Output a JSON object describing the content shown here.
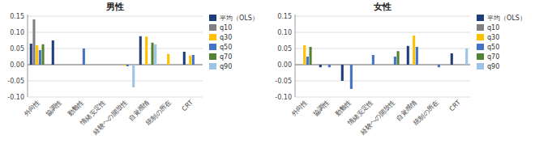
{
  "chart_data": [
    {
      "type": "bar",
      "title": "男性",
      "categories": [
        "外向性",
        "協調性",
        "勤勉性",
        "情緒安定性",
        "経験への開放性",
        "自覚感情",
        "統制の所在",
        "CRT"
      ],
      "series": [
        {
          "name": "平均（OLS）",
          "color": "#1f3d7a",
          "values": [
            0.065,
            0.075,
            0.0,
            0.0,
            0.0,
            0.088,
            0.0,
            0.04
          ]
        },
        {
          "name": "q10",
          "color": "#808080",
          "values": [
            0.14,
            0.0,
            0.0,
            0.0,
            0.0,
            0.0,
            0.0,
            0.0
          ]
        },
        {
          "name": "q30",
          "color": "#ffc000",
          "values": [
            0.06,
            0.0,
            0.0,
            0.0,
            -0.003,
            0.087,
            0.033,
            0.028
          ]
        },
        {
          "name": "q50",
          "color": "#4472c4",
          "values": [
            0.045,
            0.0,
            0.05,
            0.0,
            -0.005,
            0.0,
            0.0,
            0.03
          ]
        },
        {
          "name": "q70",
          "color": "#548235",
          "values": [
            0.063,
            0.0,
            0.0,
            0.0,
            0.0,
            0.068,
            0.0,
            0.0
          ]
        },
        {
          "name": "q90",
          "color": "#9dc3e6",
          "values": [
            0.0,
            0.0,
            0.0,
            0.0,
            -0.07,
            0.063,
            0.0,
            0.0
          ]
        }
      ],
      "ylim": [
        -0.1,
        0.155
      ],
      "yticks": [
        {
          "value": -0.1,
          "label": "-0.10"
        },
        {
          "value": -0.05,
          "label": "-0.05"
        },
        {
          "value": 0.0,
          "label": "0.00"
        },
        {
          "value": 0.05,
          "label": "0.05"
        },
        {
          "value": 0.1,
          "label": "0.10"
        },
        {
          "value": 0.15,
          "label": "0.15"
        }
      ],
      "grid": true,
      "legend": "upper right"
    },
    {
      "type": "bar",
      "title": "女性",
      "categories": [
        "外向性",
        "協調性",
        "勤勉性",
        "情緒安定性",
        "経験への開放性",
        "自覚感情",
        "統制の所在",
        "CRT"
      ],
      "series": [
        {
          "name": "平均（OLS）",
          "color": "#1f3d7a",
          "values": [
            0.0,
            -0.008,
            -0.05,
            0.0,
            0.0,
            0.058,
            0.0,
            0.035
          ]
        },
        {
          "name": "q10",
          "color": "#808080",
          "values": [
            0.0,
            0.0,
            0.0,
            0.0,
            0.0,
            0.0,
            0.0,
            0.0
          ]
        },
        {
          "name": "q30",
          "color": "#ffc000",
          "values": [
            0.06,
            0.0,
            0.0,
            0.0,
            0.0,
            0.09,
            0.0,
            0.0
          ]
        },
        {
          "name": "q50",
          "color": "#4472c4",
          "values": [
            0.025,
            -0.008,
            -0.075,
            0.03,
            0.025,
            0.055,
            -0.008,
            0.0
          ]
        },
        {
          "name": "q70",
          "color": "#548235",
          "values": [
            0.055,
            0.0,
            0.0,
            0.0,
            0.042,
            0.0,
            0.0,
            0.0
          ]
        },
        {
          "name": "q90",
          "color": "#9dc3e6",
          "values": [
            0.0,
            0.0,
            0.0,
            0.0,
            0.0,
            0.0,
            0.0,
            0.05
          ]
        }
      ],
      "ylim": [
        -0.1,
        0.155
      ],
      "yticks": [
        {
          "value": -0.1,
          "label": "-0.10"
        },
        {
          "value": -0.05,
          "label": "-0.05"
        },
        {
          "value": 0.0,
          "label": "0.00"
        },
        {
          "value": 0.05,
          "label": "0.05"
        },
        {
          "value": 0.1,
          "label": "0.10"
        },
        {
          "value": 0.15,
          "label": "0.15"
        }
      ],
      "grid": true,
      "legend": "upper right"
    }
  ]
}
